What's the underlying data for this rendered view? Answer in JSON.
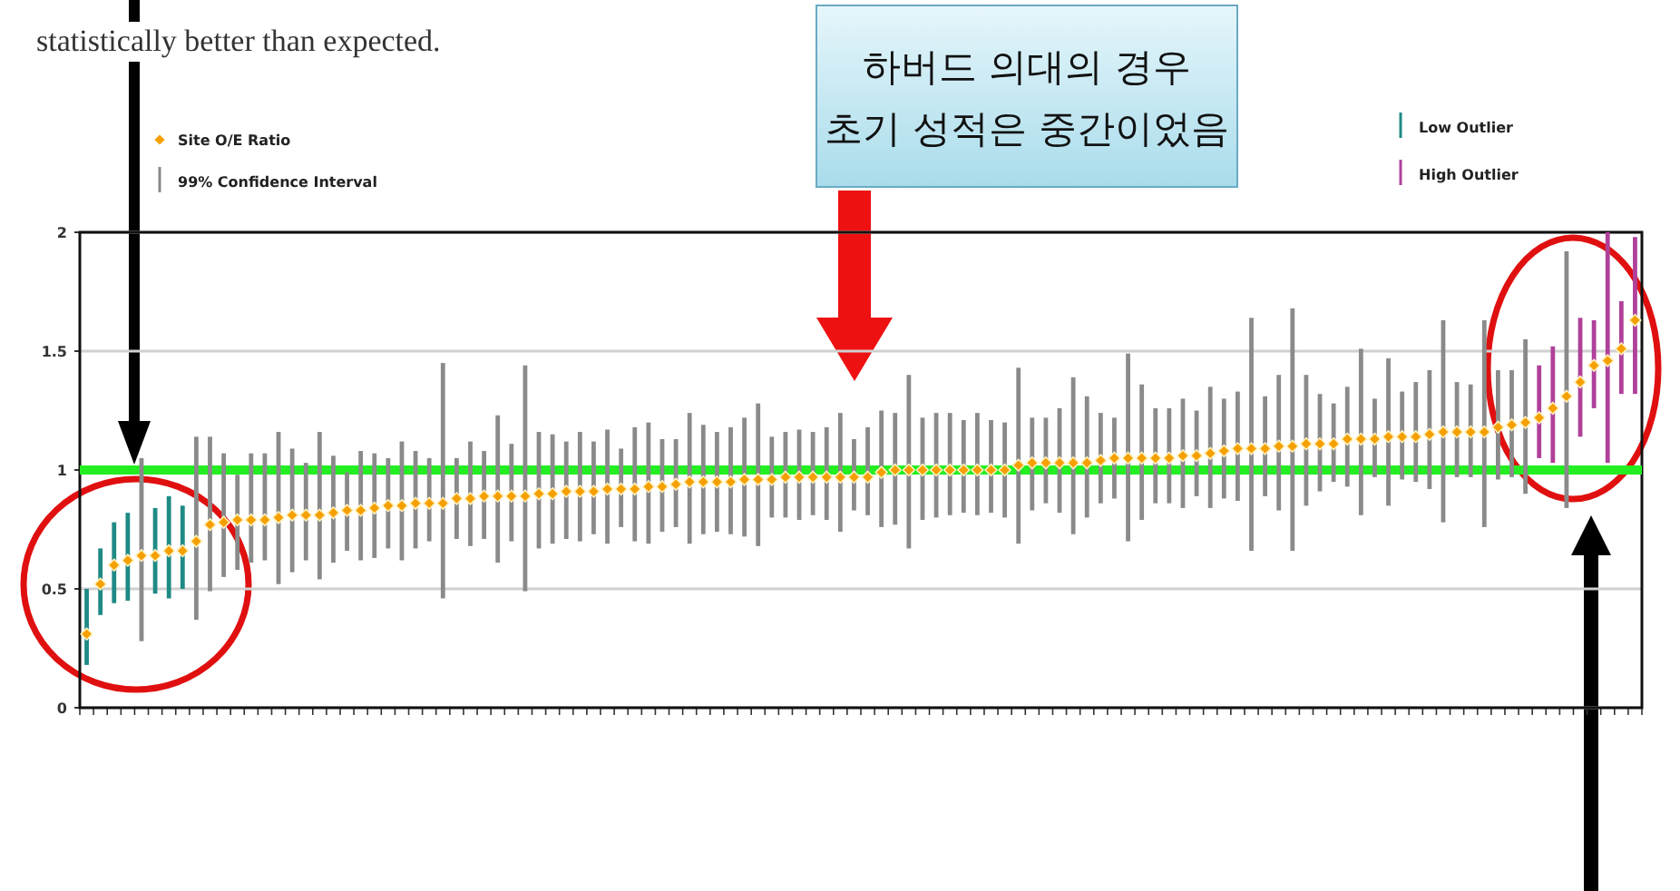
{
  "chart_data": {
    "type": "bar",
    "annotations": [
      "statistically better than expected.",
      "하버드 의대의 경우\n초기 성적은 중간이었음"
    ],
    "categories": [
      null,
      null,
      null,
      null,
      null,
      null,
      null,
      null,
      null,
      null,
      null,
      null,
      null,
      null,
      null,
      null,
      null,
      null,
      null,
      null,
      null,
      null,
      null,
      null,
      null,
      null,
      null,
      null,
      null,
      null,
      null,
      null,
      null,
      null,
      null,
      null,
      null,
      null,
      null,
      null,
      null,
      null,
      null,
      null,
      null,
      null,
      null,
      null,
      null,
      null,
      null,
      null,
      null,
      null,
      null,
      null,
      null,
      null,
      null,
      null,
      null,
      null,
      null,
      null,
      null,
      null,
      null,
      null,
      null,
      null,
      null,
      null,
      null,
      null,
      null,
      null,
      null,
      null,
      null,
      null,
      null,
      null,
      null,
      null,
      null,
      null,
      null,
      null,
      null,
      null,
      null,
      null,
      null,
      null,
      null,
      null,
      null,
      null,
      null,
      null,
      null,
      null,
      null,
      null,
      null,
      null,
      null,
      null,
      null,
      null,
      null,
      null,
      null,
      null
    ],
    "series": [
      {
        "name": "Site O/E Ratio",
        "type": "scatter",
        "color": "#f5a000",
        "marker": "diamond",
        "values": [
          0.31,
          0.52,
          0.6,
          0.62,
          0.64,
          0.64,
          0.66,
          0.66,
          0.7,
          0.77,
          0.78,
          0.79,
          0.79,
          0.79,
          0.8,
          0.81,
          0.81,
          0.81,
          0.82,
          0.83,
          0.83,
          0.84,
          0.85,
          0.85,
          0.86,
          0.86,
          0.86,
          0.88,
          0.88,
          0.89,
          0.89,
          0.89,
          0.89,
          0.9,
          0.9,
          0.91,
          0.91,
          0.91,
          0.92,
          0.92,
          0.92,
          0.93,
          0.93,
          0.94,
          0.95,
          0.95,
          0.95,
          0.95,
          0.96,
          0.96,
          0.96,
          0.97,
          0.97,
          0.97,
          0.97,
          0.97,
          0.97,
          0.97,
          0.99,
          1.0,
          1.0,
          1.0,
          1.0,
          1.0,
          1.0,
          1.0,
          1.0,
          1.0,
          1.02,
          1.03,
          1.03,
          1.03,
          1.03,
          1.03,
          1.04,
          1.05,
          1.05,
          1.05,
          1.05,
          1.05,
          1.06,
          1.06,
          1.07,
          1.08,
          1.09,
          1.09,
          1.09,
          1.1,
          1.1,
          1.11,
          1.11,
          1.11,
          1.13,
          1.13,
          1.13,
          1.14,
          1.14,
          1.14,
          1.15,
          1.16,
          1.16,
          1.16,
          1.16,
          1.18,
          1.19,
          1.2,
          1.22,
          1.26,
          1.31,
          1.37,
          1.44,
          1.46,
          1.51,
          1.63
        ]
      },
      {
        "name": "99% Confidence Interval",
        "type": "bar",
        "color": "#8a8a8a",
        "base": [
          null,
          null,
          null,
          null,
          0.28,
          null,
          null,
          null,
          0.37,
          0.49,
          0.55,
          0.58,
          0.61,
          0.62,
          0.52,
          0.57,
          0.62,
          0.54,
          0.61,
          0.66,
          0.62,
          0.63,
          0.67,
          0.62,
          0.67,
          0.7,
          0.46,
          0.71,
          0.68,
          0.71,
          0.61,
          0.7,
          0.49,
          0.67,
          0.69,
          0.71,
          0.7,
          0.73,
          0.69,
          0.76,
          0.7,
          0.69,
          0.74,
          0.76,
          0.69,
          0.73,
          0.74,
          0.73,
          0.72,
          0.68,
          0.8,
          0.8,
          0.79,
          0.81,
          0.79,
          0.74,
          0.83,
          0.81,
          0.76,
          0.77,
          0.67,
          0.79,
          0.8,
          0.81,
          0.82,
          0.81,
          0.82,
          0.8,
          0.69,
          0.83,
          0.86,
          0.82,
          0.73,
          0.8,
          0.86,
          0.88,
          0.7,
          0.79,
          0.86,
          0.86,
          0.84,
          0.89,
          0.84,
          0.88,
          0.87,
          0.66,
          0.89,
          0.83,
          0.66,
          0.85,
          0.91,
          0.95,
          0.93,
          0.81,
          0.97,
          0.85,
          0.96,
          0.95,
          0.92,
          0.78,
          0.97,
          0.97,
          0.76,
          0.96,
          0.97,
          0.9,
          null,
          null,
          0.84,
          null,
          null,
          null,
          null,
          null
        ],
        "values": [
          null,
          null,
          null,
          null,
          0.77,
          null,
          null,
          null,
          0.77,
          0.65,
          0.52,
          0.4,
          0.46,
          0.45,
          0.64,
          0.52,
          0.41,
          0.62,
          0.45,
          0.33,
          0.46,
          0.44,
          0.38,
          0.5,
          0.41,
          0.35,
          0.99,
          0.34,
          0.44,
          0.37,
          0.62,
          0.41,
          0.95,
          0.49,
          0.46,
          0.41,
          0.46,
          0.39,
          0.48,
          0.33,
          0.48,
          0.51,
          0.39,
          0.37,
          0.55,
          0.46,
          0.42,
          0.45,
          0.5,
          0.6,
          0.34,
          0.36,
          0.38,
          0.35,
          0.39,
          0.5,
          0.3,
          0.37,
          0.49,
          0.47,
          0.73,
          0.43,
          0.44,
          0.43,
          0.39,
          0.43,
          0.39,
          0.4,
          0.74,
          0.39,
          0.36,
          0.44,
          0.66,
          0.51,
          0.38,
          0.34,
          0.79,
          0.57,
          0.4,
          0.4,
          0.46,
          0.36,
          0.51,
          0.42,
          0.46,
          0.98,
          0.42,
          0.57,
          1.02,
          0.55,
          0.41,
          0.33,
          0.42,
          0.7,
          0.33,
          0.62,
          0.37,
          0.42,
          0.5,
          0.85,
          0.4,
          0.39,
          0.87,
          0.46,
          0.45,
          0.65,
          null,
          null,
          1.08,
          null,
          null,
          null,
          null,
          null
        ]
      },
      {
        "name": "Low Outlier",
        "type": "bar",
        "color": "#1f8a85",
        "base": [
          0.18,
          0.39,
          0.44,
          0.45,
          null,
          0.48,
          0.46,
          0.5,
          null,
          null,
          null,
          null,
          null,
          null,
          null,
          null,
          null,
          null,
          null,
          null,
          null,
          null,
          null,
          null,
          null,
          null,
          null,
          null,
          null,
          null,
          null,
          null,
          null,
          null,
          null,
          null,
          null,
          null,
          null,
          null,
          null,
          null,
          null,
          null,
          null,
          null,
          null,
          null,
          null,
          null,
          null,
          null,
          null,
          null,
          null,
          null,
          null,
          null,
          null,
          null,
          null,
          null,
          null,
          null,
          null,
          null,
          null,
          null,
          null,
          null,
          null,
          null,
          null,
          null,
          null,
          null,
          null,
          null,
          null,
          null,
          null,
          null,
          null,
          null,
          null,
          null,
          null,
          null,
          null,
          null,
          null,
          null,
          null,
          null,
          null,
          null,
          null,
          null,
          null,
          null,
          null,
          null,
          null,
          null,
          null,
          null,
          null,
          null,
          null,
          null,
          null,
          null,
          null,
          null
        ],
        "values": [
          0.32,
          0.28,
          0.34,
          0.37,
          null,
          0.36,
          0.43,
          0.35,
          null,
          null,
          null,
          null,
          null,
          null,
          null,
          null,
          null,
          null,
          null,
          null,
          null,
          null,
          null,
          null,
          null,
          null,
          null,
          null,
          null,
          null,
          null,
          null,
          null,
          null,
          null,
          null,
          null,
          null,
          null,
          null,
          null,
          null,
          null,
          null,
          null,
          null,
          null,
          null,
          null,
          null,
          null,
          null,
          null,
          null,
          null,
          null,
          null,
          null,
          null,
          null,
          null,
          null,
          null,
          null,
          null,
          null,
          null,
          null,
          null,
          null,
          null,
          null,
          null,
          null,
          null,
          null,
          null,
          null,
          null,
          null,
          null,
          null,
          null,
          null,
          null,
          null,
          null,
          null,
          null,
          null,
          null,
          null,
          null,
          null,
          null,
          null,
          null,
          null,
          null,
          null,
          null,
          null,
          null,
          null,
          null,
          null,
          null,
          null,
          null,
          null,
          null,
          null,
          null,
          null
        ]
      },
      {
        "name": "High Outlier",
        "type": "bar",
        "color": "#b0409a",
        "base": [
          null,
          null,
          null,
          null,
          null,
          null,
          null,
          null,
          null,
          null,
          null,
          null,
          null,
          null,
          null,
          null,
          null,
          null,
          null,
          null,
          null,
          null,
          null,
          null,
          null,
          null,
          null,
          null,
          null,
          null,
          null,
          null,
          null,
          null,
          null,
          null,
          null,
          null,
          null,
          null,
          null,
          null,
          null,
          null,
          null,
          null,
          null,
          null,
          null,
          null,
          null,
          null,
          null,
          null,
          null,
          null,
          null,
          null,
          null,
          null,
          null,
          null,
          null,
          null,
          null,
          null,
          null,
          null,
          null,
          null,
          null,
          null,
          null,
          null,
          null,
          null,
          null,
          null,
          null,
          null,
          null,
          null,
          null,
          null,
          null,
          null,
          null,
          null,
          null,
          null,
          null,
          null,
          null,
          null,
          null,
          null,
          null,
          null,
          null,
          null,
          null,
          null,
          null,
          null,
          null,
          null,
          1.05,
          1.03,
          null,
          1.14,
          1.26,
          1.03,
          1.32,
          1.32
        ],
        "values": [
          null,
          null,
          null,
          null,
          null,
          null,
          null,
          null,
          null,
          null,
          null,
          null,
          null,
          null,
          null,
          null,
          null,
          null,
          null,
          null,
          null,
          null,
          null,
          null,
          null,
          null,
          null,
          null,
          null,
          null,
          null,
          null,
          null,
          null,
          null,
          null,
          null,
          null,
          null,
          null,
          null,
          null,
          null,
          null,
          null,
          null,
          null,
          null,
          null,
          null,
          null,
          null,
          null,
          null,
          null,
          null,
          null,
          null,
          null,
          null,
          null,
          null,
          null,
          null,
          null,
          null,
          null,
          null,
          null,
          null,
          null,
          null,
          null,
          null,
          null,
          null,
          null,
          null,
          null,
          null,
          null,
          null,
          null,
          null,
          null,
          null,
          null,
          null,
          null,
          null,
          null,
          null,
          null,
          null,
          null,
          null,
          null,
          null,
          null,
          null,
          null,
          null,
          null,
          null,
          null,
          null,
          0.39,
          0.49,
          null,
          0.5,
          0.37,
          0.97,
          0.39,
          0.66
        ]
      }
    ],
    "ylim": [
      0,
      2
    ],
    "yticks": [
      0,
      0.5,
      1,
      1.5,
      2
    ],
    "grid": "y",
    "legend": "top",
    "ref_lines": [
      {
        "axis": "y",
        "value": 1,
        "color": "#22ee22"
      }
    ]
  }
}
